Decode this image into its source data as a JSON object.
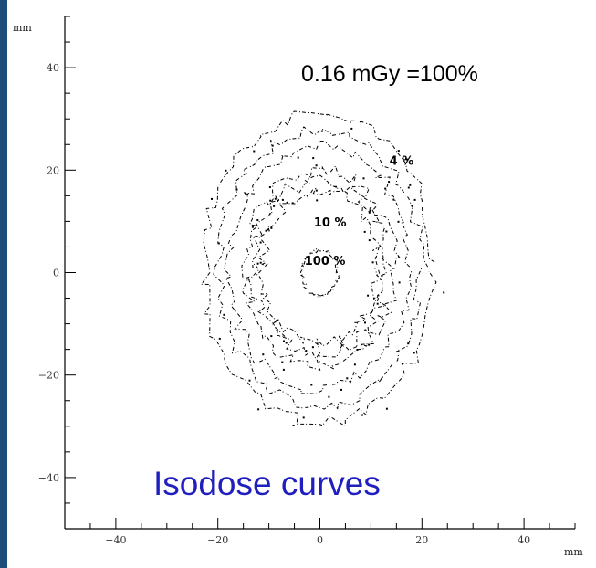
{
  "chart_data": {
    "type": "contour",
    "title": "Isodose curves",
    "dose_reference": "0.16 mGy =100%",
    "xlabel": "mm",
    "ylabel": "mm",
    "xlim": [
      -50,
      50
    ],
    "ylim": [
      -50,
      50
    ],
    "x_ticks": [
      -40,
      -20,
      0,
      20,
      40
    ],
    "y_ticks": [
      -40,
      -20,
      0,
      20,
      40
    ],
    "x_tick_labels": [
      "−40",
      "−20",
      "0",
      "20",
      "40"
    ],
    "y_tick_labels": [
      "−40",
      "−20",
      "0",
      "20",
      "40"
    ],
    "contours": [
      {
        "label": "4 %",
        "rx": 20,
        "ry": 27,
        "cx": 0,
        "cy": 1,
        "label_x": 16,
        "label_y": 21
      },
      {
        "label": "10 %",
        "rx": 13,
        "ry": 17,
        "cx": 0,
        "cy": 1,
        "label_x": 2,
        "label_y": 9
      },
      {
        "label": "100 %",
        "rx": 4,
        "ry": 5,
        "cx": 0,
        "cy": 0,
        "label_x": 1,
        "label_y": 1.5
      }
    ]
  }
}
